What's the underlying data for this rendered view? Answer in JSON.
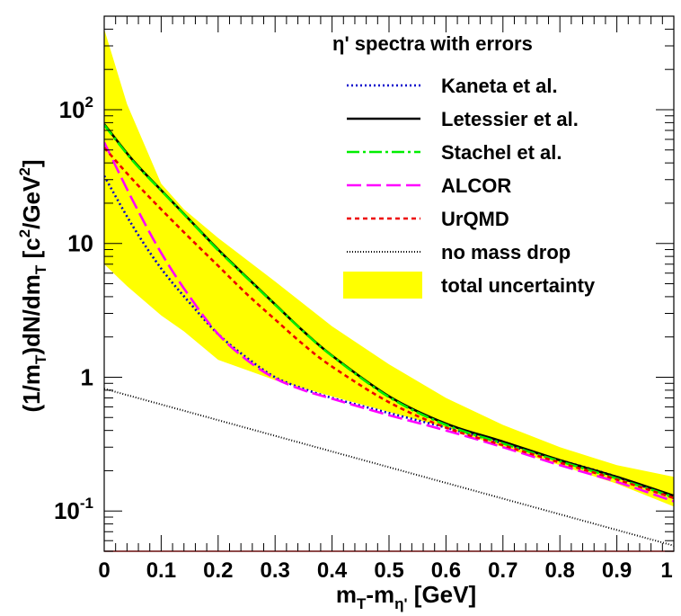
{
  "chart_data": {
    "type": "line",
    "title": "",
    "xlabel": {
      "main": "m",
      "sub1": "T",
      "mid": "-m",
      "sub2": "η'",
      "tail": " [GeV]"
    },
    "ylabel": {
      "p1": "(1/m",
      "s1": "T",
      "p2": ")dN/dm",
      "s2": "T",
      "p3": " [c",
      "e1": "2",
      "p4": "/GeV",
      "e2": "2",
      "p5": "]"
    },
    "xlim": [
      0,
      1
    ],
    "ylim": [
      0.05,
      500
    ],
    "y_log_scale": true,
    "x_ticks": [
      "0",
      "0.1",
      "0.2",
      "0.3",
      "0.4",
      "0.5",
      "0.6",
      "0.7",
      "0.8",
      "0.9",
      "1"
    ],
    "y_ticks": [
      {
        "value": 0.1,
        "base": "10",
        "exp": "-1"
      },
      {
        "value": 1,
        "base": "1",
        "exp": ""
      },
      {
        "value": 10,
        "base": "10",
        "exp": ""
      },
      {
        "value": 100,
        "base": "10",
        "exp": "2"
      }
    ],
    "legend_title": "η' spectra with errors",
    "legend_position": "top-right",
    "band": {
      "name": "total uncertainty",
      "color": "#ffff00",
      "x": [
        0,
        0.04,
        0.1,
        0.14,
        0.2,
        0.3,
        0.4,
        0.5,
        0.6,
        0.7,
        0.8,
        0.9,
        1.0
      ],
      "upper": [
        400,
        110,
        28,
        18,
        11,
        5.2,
        2.4,
        1.25,
        0.7,
        0.44,
        0.3,
        0.22,
        0.18
      ],
      "lower": [
        7,
        4.8,
        2.9,
        2.2,
        1.35,
        0.95,
        0.72,
        0.55,
        0.42,
        0.3,
        0.22,
        0.16,
        0.108
      ]
    },
    "series": [
      {
        "name": "Kaneta et al.",
        "color": "#0000cc",
        "dash": "2,3",
        "x": [
          0,
          0.05,
          0.1,
          0.15,
          0.2,
          0.25,
          0.3,
          0.35,
          0.4,
          0.5,
          0.6,
          0.7,
          0.8,
          0.9,
          1.0
        ],
        "y": [
          32,
          13.5,
          6.5,
          3.6,
          2.1,
          1.4,
          1.0,
          0.82,
          0.7,
          0.54,
          0.42,
          0.32,
          0.24,
          0.18,
          0.125
        ]
      },
      {
        "name": "Letessier et al.",
        "color": "#000000",
        "dash": "",
        "x": [
          0,
          0.05,
          0.1,
          0.15,
          0.2,
          0.25,
          0.3,
          0.35,
          0.4,
          0.5,
          0.6,
          0.7,
          0.8,
          0.9,
          1.0
        ],
        "y": [
          78,
          42,
          25,
          15,
          9,
          5.6,
          3.5,
          2.2,
          1.45,
          0.72,
          0.45,
          0.33,
          0.24,
          0.18,
          0.13
        ]
      },
      {
        "name": "Stachel et al.",
        "color": "#00ee00",
        "dash": "14,4,3,4",
        "x": [
          0,
          0.05,
          0.1,
          0.15,
          0.2,
          0.25,
          0.3,
          0.35,
          0.4,
          0.5,
          0.6,
          0.7,
          0.8,
          0.9,
          1.0
        ],
        "y": [
          77,
          41.5,
          24.8,
          14.9,
          8.9,
          5.55,
          3.48,
          2.19,
          1.44,
          0.71,
          0.44,
          0.32,
          0.235,
          0.175,
          0.127
        ]
      },
      {
        "name": "ALCOR",
        "color": "#ff00ff",
        "dash": "16,6",
        "x": [
          0,
          0.05,
          0.1,
          0.15,
          0.2,
          0.25,
          0.3,
          0.35,
          0.4,
          0.5,
          0.6,
          0.7,
          0.8,
          0.9,
          1.0
        ],
        "y": [
          57,
          21,
          8.5,
          4.0,
          2.1,
          1.35,
          0.98,
          0.8,
          0.69,
          0.52,
          0.4,
          0.3,
          0.22,
          0.165,
          0.118
        ]
      },
      {
        "name": "UrQMD",
        "color": "#ee0000",
        "dash": "5,4",
        "x": [
          0,
          0.05,
          0.1,
          0.15,
          0.2,
          0.25,
          0.3,
          0.35,
          0.4,
          0.5,
          0.6,
          0.7,
          0.8,
          0.9,
          1.0
        ],
        "y": [
          52,
          30,
          18,
          11,
          6.8,
          4.2,
          2.7,
          1.75,
          1.2,
          0.65,
          0.42,
          0.31,
          0.23,
          0.172,
          0.125
        ]
      },
      {
        "name": "no mass drop",
        "color": "#000000",
        "dash": "1,2",
        "x": [
          0,
          1.0
        ],
        "y": [
          0.82,
          0.055
        ]
      }
    ]
  }
}
